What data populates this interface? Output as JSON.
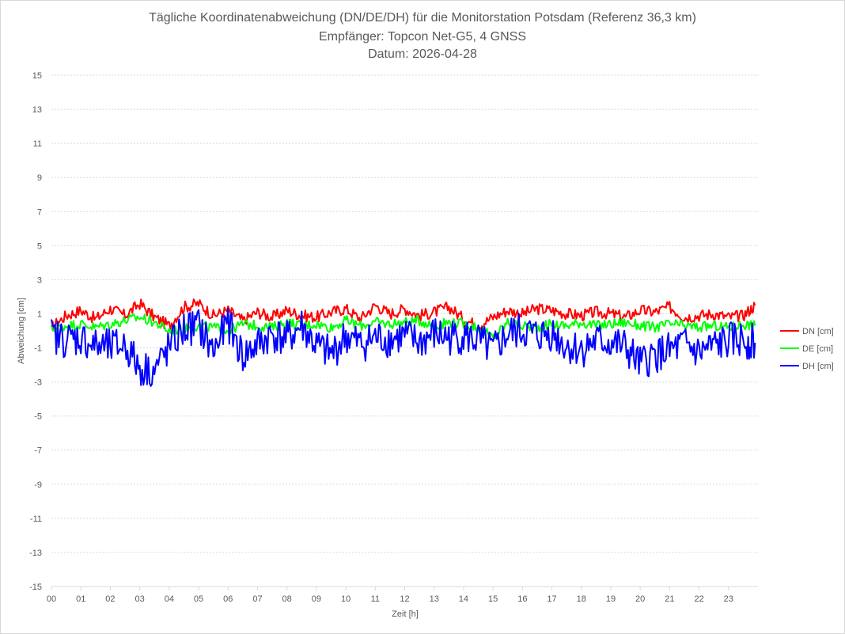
{
  "chart_data": {
    "type": "line",
    "title": "Tägliche Koordinatenabweichung (DN/DE/DH) für die Monitorstation Potsdam (Referenz 36,3 km)",
    "subtitle": "Empfänger: Topcon Net-G5, 4 GNSS",
    "date_label": "Datum: 2026-04-28",
    "xlabel": "Zeit [h]",
    "ylabel": "Abweichung [cm]",
    "xlim": [
      0,
      24
    ],
    "ylim": [
      -15,
      15
    ],
    "x_ticks": [
      "00",
      "01",
      "02",
      "03",
      "04",
      "05",
      "06",
      "07",
      "08",
      "09",
      "10",
      "11",
      "12",
      "13",
      "14",
      "15",
      "16",
      "17",
      "18",
      "19",
      "20",
      "21",
      "22",
      "23"
    ],
    "y_ticks": [
      15,
      13,
      11,
      9,
      7,
      5,
      3,
      1,
      -1,
      -3,
      -5,
      -7,
      -9,
      -11,
      -13,
      -15
    ],
    "grid": true,
    "legend_position": "right",
    "series": [
      {
        "name": "DN [cm]",
        "color": "#ff0000",
        "x": [
          0,
          0.5,
          1,
          1.5,
          2,
          2.5,
          3,
          3.5,
          4,
          4.5,
          5,
          5.5,
          6,
          6.5,
          7,
          7.5,
          8,
          8.5,
          9,
          9.5,
          10,
          10.5,
          11,
          11.5,
          12,
          12.5,
          13,
          13.5,
          14,
          14.5,
          15,
          15.5,
          16,
          16.5,
          17,
          17.5,
          18,
          18.5,
          19,
          19.5,
          20,
          20.5,
          21,
          21.5,
          22,
          22.5,
          23,
          23.5,
          23.9
        ],
        "values": [
          0.2,
          0.9,
          1.2,
          0.7,
          1.3,
          0.9,
          1.6,
          0.8,
          0.3,
          1.4,
          1.6,
          0.9,
          1.2,
          0.6,
          1.1,
          0.8,
          1.2,
          0.9,
          0.8,
          1.1,
          1.3,
          0.7,
          1.5,
          1.0,
          1.3,
          0.9,
          1.1,
          1.4,
          0.7,
          0.3,
          0.8,
          1.2,
          1.0,
          1.3,
          1.2,
          1.0,
          0.9,
          1.1,
          1.0,
          0.8,
          1.2,
          1.1,
          1.4,
          0.8,
          0.9,
          1.0,
          0.8,
          0.9,
          1.5
        ]
      },
      {
        "name": "DE [cm]",
        "color": "#00ff00",
        "x": [
          0,
          0.5,
          1,
          1.5,
          2,
          2.5,
          3,
          3.5,
          4,
          4.5,
          5,
          5.5,
          6,
          6.5,
          7,
          7.5,
          8,
          8.5,
          9,
          9.5,
          10,
          10.5,
          11,
          11.5,
          12,
          12.5,
          13,
          13.5,
          14,
          14.5,
          15,
          15.5,
          16,
          16.5,
          17,
          17.5,
          18,
          18.5,
          19,
          19.5,
          20,
          20.5,
          21,
          21.5,
          22,
          22.5,
          23,
          23.5,
          23.9
        ],
        "values": [
          0.1,
          0.3,
          0.4,
          0.2,
          0.4,
          0.6,
          0.8,
          0.5,
          0.0,
          0.1,
          0.3,
          0.2,
          0.0,
          0.4,
          0.3,
          0.2,
          0.5,
          0.3,
          0.4,
          0.2,
          0.6,
          0.3,
          0.5,
          0.4,
          0.5,
          0.6,
          0.3,
          0.5,
          0.4,
          0.2,
          -0.4,
          0.5,
          0.3,
          0.2,
          0.4,
          0.3,
          0.5,
          0.3,
          0.4,
          0.5,
          0.3,
          0.2,
          0.4,
          0.3,
          0.2,
          0.3,
          0.2,
          0.4,
          0.3
        ]
      },
      {
        "name": "DH [cm]",
        "color": "#0000ff",
        "x": [
          0,
          0.5,
          1,
          1.5,
          2,
          2.5,
          3,
          3.5,
          4,
          4.5,
          5,
          5.5,
          6,
          6.5,
          7,
          7.5,
          8,
          8.5,
          9,
          9.5,
          10,
          10.5,
          11,
          11.5,
          12,
          12.5,
          13,
          13.5,
          14,
          14.5,
          15,
          15.5,
          16,
          16.5,
          17,
          17.5,
          18,
          18.5,
          19,
          19.5,
          20,
          20.5,
          21,
          21.5,
          22,
          22.5,
          23,
          23.5,
          23.9
        ],
        "values": [
          -0.3,
          -0.5,
          -0.4,
          -0.9,
          -1.0,
          -0.8,
          -2.2,
          -2.3,
          -1.0,
          0.1,
          0.3,
          -1.2,
          0.5,
          -1.5,
          -0.8,
          -0.2,
          -0.5,
          0.3,
          -0.9,
          -1.4,
          -0.3,
          -0.8,
          -0.4,
          -0.5,
          -0.3,
          -0.7,
          -0.2,
          -0.4,
          -0.3,
          -0.6,
          -1.2,
          -0.2,
          0.0,
          -0.3,
          -0.1,
          -0.9,
          -1.1,
          -0.6,
          -0.7,
          -1.0,
          -2.0,
          -1.4,
          -1.2,
          -0.8,
          -1.3,
          -0.9,
          -0.6,
          -0.5,
          -0.7
        ]
      }
    ]
  }
}
